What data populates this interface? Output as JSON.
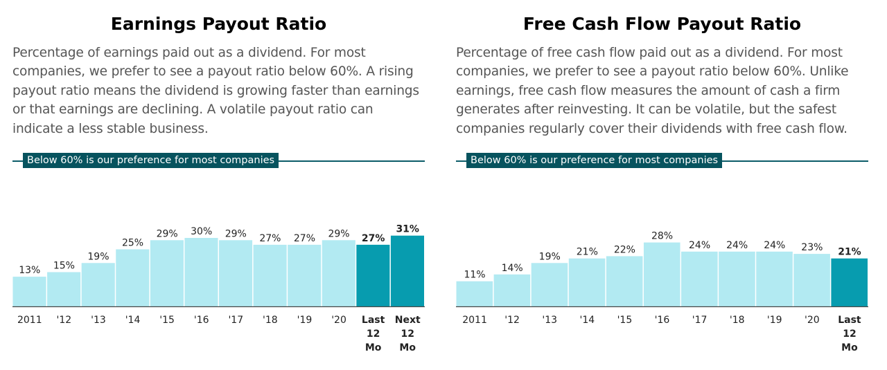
{
  "colors": {
    "bar_light": "#b2eaf2",
    "bar_dark": "#079caf",
    "threshold": "#07535e",
    "axis": "#444444"
  },
  "panels": [
    {
      "title": "Earnings Payout Ratio",
      "description": "Percentage of earnings paid out as a dividend. For most companies, we prefer to see a payout ratio below 60%. A rising payout ratio means the dividend is growing faster than earnings or that earnings are declining. A volatile payout ratio can indicate a less stable business.",
      "threshold_label": "Below 60% is our preference for most companies"
    },
    {
      "title": "Free Cash Flow Payout Ratio",
      "description": "Percentage of free cash flow paid out as a dividend. For most companies, we prefer to see a payout ratio below 60%. Unlike earnings, free cash flow measures the amount of cash a firm generates after reinvesting. It can be volatile, but the safest companies regularly cover their dividends with free cash flow.",
      "threshold_label": "Below 60% is our preference for most companies"
    }
  ],
  "chart_data": [
    {
      "type": "bar",
      "title": "Earnings Payout Ratio",
      "categories": [
        "2011",
        "'12",
        "'13",
        "'14",
        "'15",
        "'16",
        "'17",
        "'18",
        "'19",
        "'20",
        "Last 12 Mo",
        "Next 12 Mo"
      ],
      "values": [
        13,
        15,
        19,
        25,
        29,
        30,
        29,
        27,
        27,
        29,
        27,
        31
      ],
      "value_labels": [
        "13%",
        "15%",
        "19%",
        "25%",
        "29%",
        "30%",
        "29%",
        "27%",
        "27%",
        "29%",
        "27%",
        "31%"
      ],
      "highlight": [
        false,
        false,
        false,
        false,
        false,
        false,
        false,
        false,
        false,
        false,
        true,
        true
      ],
      "threshold": 60,
      "ylim": [
        0,
        60
      ],
      "grid": false
    },
    {
      "type": "bar",
      "title": "Free Cash Flow Payout Ratio",
      "categories": [
        "2011",
        "'12",
        "'13",
        "'14",
        "'15",
        "'16",
        "'17",
        "'18",
        "'19",
        "'20",
        "Last 12 Mo"
      ],
      "values": [
        11,
        14,
        19,
        21,
        22,
        28,
        24,
        24,
        24,
        23,
        21
      ],
      "value_labels": [
        "11%",
        "14%",
        "19%",
        "21%",
        "22%",
        "28%",
        "24%",
        "24%",
        "24%",
        "23%",
        "21%"
      ],
      "highlight": [
        false,
        false,
        false,
        false,
        false,
        false,
        false,
        false,
        false,
        false,
        true
      ],
      "threshold": 60,
      "ylim": [
        0,
        60
      ],
      "grid": false
    }
  ]
}
